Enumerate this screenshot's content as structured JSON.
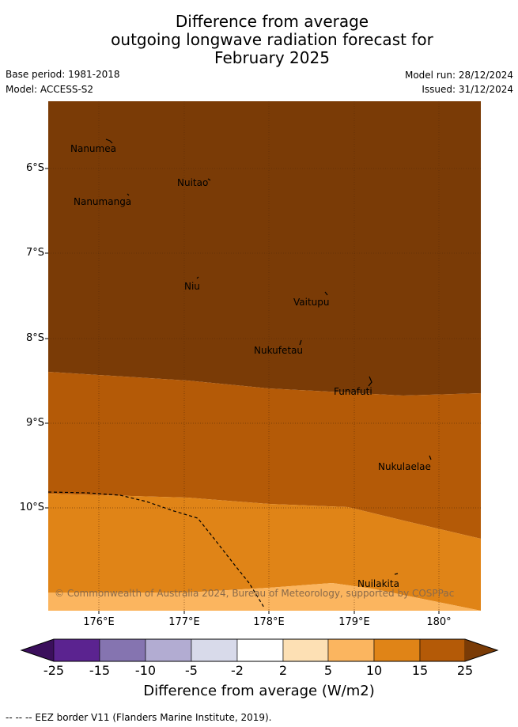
{
  "header": {
    "title_lines": [
      "Difference from average",
      "outgoing longwave radiation forecast for",
      "February 2025"
    ],
    "base_period": "Base period: 1981-2018",
    "model": "Model: ACCESS-S2",
    "model_run": "Model run: 28/12/2024",
    "issued": "Issued: 31/12/2024"
  },
  "map": {
    "lat_labels": [
      "6°S",
      "7°S",
      "8°S",
      "9°S",
      "10°S"
    ],
    "lon_labels": [
      "176°E",
      "177°E",
      "178°E",
      "179°E",
      "180°"
    ],
    "places": [
      "Nanumea",
      "Nuitao",
      "Nanumanga",
      "Niu",
      "Vaitupu",
      "Nukufetau",
      "Funafuti",
      "Nukulaelae",
      "Nuilakita"
    ],
    "copyright": "© Commonwealth of Australia 2024, Bureau of Meteorology, supported by COSPPac",
    "colors": {
      "band_25_plus": "#7a3b06",
      "band_15_25": "#b45a07",
      "band_10_15": "#e08417",
      "band_5_10": "#fbb55f"
    }
  },
  "colorbar": {
    "ticks": [
      "-25",
      "-15",
      "-10",
      "-5",
      "-2",
      "2",
      "5",
      "10",
      "15",
      "25"
    ],
    "colors": [
      "#3b0f5c",
      "#5b2390",
      "#8574b0",
      "#b2acd2",
      "#d8daea",
      "#ffffff",
      "#fde0b4",
      "#fbb55f",
      "#e08417",
      "#b45a07",
      "#7a3b06"
    ],
    "label": "Difference from average (W/m2)"
  },
  "footnote": "--  --  -- EEZ border V11 (Flanders Marine Institute, 2019)."
}
